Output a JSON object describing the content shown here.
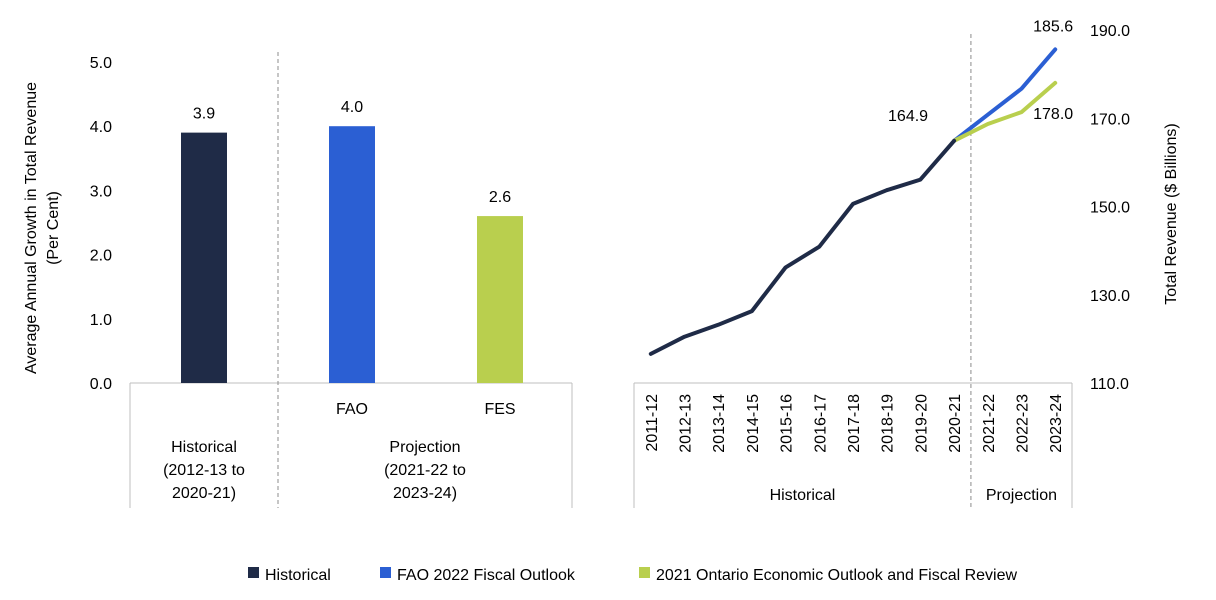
{
  "chart_data": [
    {
      "type": "bar",
      "ylabel_lines": [
        "Average Annual Growth in Total Revenue",
        "(Per Cent)"
      ],
      "ylim": [
        0,
        5
      ],
      "yticks": [
        "0.0",
        "1.0",
        "2.0",
        "3.0",
        "4.0",
        "5.0"
      ],
      "bars": [
        {
          "series": "Historical",
          "label": "",
          "value": 3.9,
          "value_label": "3.9",
          "color": "#1f2b47"
        },
        {
          "series": "FAO 2022 Fiscal Outlook",
          "label": "FAO",
          "value": 4.0,
          "value_label": "4.0",
          "color": "#2b5fd3"
        },
        {
          "series": "2021 Ontario Economic Outlook and Fiscal Review",
          "label": "FES",
          "value": 2.6,
          "value_label": "2.6",
          "color": "#b9cf4e"
        }
      ],
      "groups": [
        {
          "lines": [
            "Historical",
            "(2012-13 to",
            "2020-21)"
          ]
        },
        {
          "lines": [
            "Projection",
            "(2021-22 to",
            "2023-24)"
          ]
        }
      ],
      "grid": false
    },
    {
      "type": "line",
      "ylabel": "Total Revenue ($ Billions)",
      "ylim": [
        110,
        190
      ],
      "yticks": [
        "110.0",
        "130.0",
        "150.0",
        "170.0",
        "190.0"
      ],
      "x": [
        "2011-12",
        "2012-13",
        "2013-14",
        "2014-15",
        "2015-16",
        "2016-17",
        "2017-18",
        "2018-19",
        "2019-20",
        "2020-21",
        "2021-22",
        "2022-23",
        "2023-24"
      ],
      "groups": [
        {
          "label": "Historical"
        },
        {
          "label": "Projection"
        }
      ],
      "series": [
        {
          "name": "Historical",
          "color": "#1f2b47",
          "values": [
            116.6,
            120.5,
            123.2,
            126.3,
            136.2,
            140.9,
            150.6,
            153.7,
            156.1,
            164.9,
            null,
            null,
            null
          ]
        },
        {
          "name": "FAO 2022 Fiscal Outlook",
          "color": "#2b5fd3",
          "values": [
            null,
            null,
            null,
            null,
            null,
            null,
            null,
            null,
            null,
            164.9,
            170.8,
            176.7,
            185.6
          ]
        },
        {
          "name": "2021 Ontario Economic Outlook and Fiscal Review",
          "color": "#b9cf4e",
          "values": [
            null,
            null,
            null,
            null,
            null,
            null,
            null,
            null,
            null,
            164.9,
            168.7,
            171.4,
            178.0
          ]
        }
      ],
      "annotations": [
        "164.9",
        "185.6",
        "178.0"
      ],
      "grid": false
    }
  ],
  "legend": [
    {
      "label": "Historical",
      "color": "#1f2b47"
    },
    {
      "label": "FAO 2022 Fiscal Outlook",
      "color": "#2b5fd3"
    },
    {
      "label": "2021 Ontario Economic Outlook and Fiscal Review",
      "color": "#b9cf4e"
    }
  ]
}
